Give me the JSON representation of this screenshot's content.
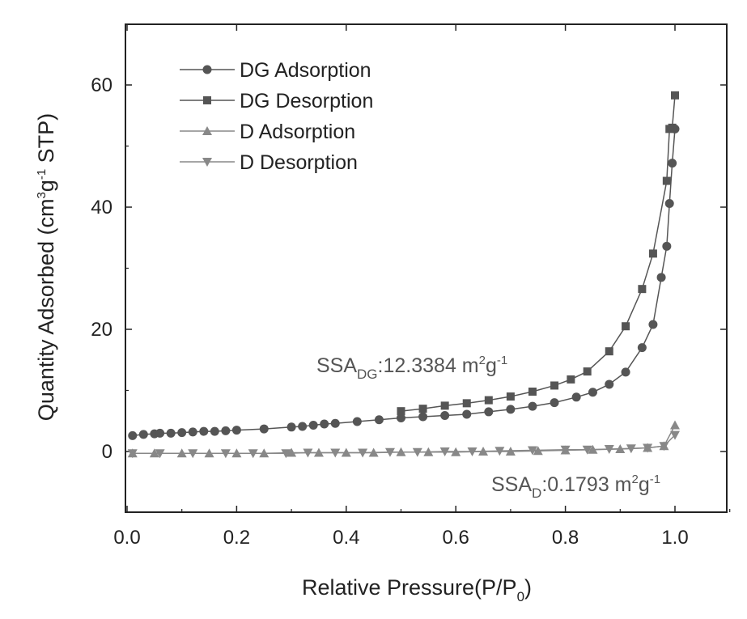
{
  "chart_data": {
    "type": "line",
    "xlabel_main": "Relative Pressure(P/P",
    "xlabel_sub": "0",
    "xlabel_end": ")",
    "ylabel_pre": "Quantity Adsorbed (cm",
    "ylabel_sup1": "3",
    "ylabel_mid": "g",
    "ylabel_sup2": "-1",
    "ylabel_end": " STP)",
    "xlim": [
      0.0,
      1.1
    ],
    "ylim": [
      -10,
      70
    ],
    "x_ticks": [
      "0.0",
      "0.2",
      "0.4",
      "0.6",
      "0.8",
      "1.0"
    ],
    "x_tick_values": [
      0.0,
      0.2,
      0.4,
      0.6,
      0.8,
      1.0
    ],
    "y_ticks": [
      "0",
      "20",
      "40",
      "60"
    ],
    "y_tick_values": [
      0,
      20,
      40,
      60
    ],
    "grid": false,
    "legend_position": "top-left",
    "series": [
      {
        "name": "DG Adsorption",
        "marker": "circle",
        "color": "#555555",
        "x": [
          0.01,
          0.03,
          0.05,
          0.06,
          0.08,
          0.1,
          0.12,
          0.14,
          0.16,
          0.18,
          0.2,
          0.25,
          0.3,
          0.32,
          0.34,
          0.36,
          0.38,
          0.42,
          0.46,
          0.5,
          0.54,
          0.58,
          0.62,
          0.66,
          0.7,
          0.74,
          0.78,
          0.82,
          0.85,
          0.88,
          0.91,
          0.94,
          0.96,
          0.975,
          0.985,
          0.99,
          0.995,
          1.0
        ],
        "y": [
          2.6,
          2.8,
          2.9,
          3.0,
          3.0,
          3.1,
          3.2,
          3.3,
          3.3,
          3.4,
          3.5,
          3.7,
          4.0,
          4.1,
          4.3,
          4.5,
          4.6,
          4.9,
          5.2,
          5.5,
          5.7,
          5.9,
          6.1,
          6.5,
          6.9,
          7.4,
          8.0,
          8.9,
          9.7,
          11.0,
          13.0,
          17.0,
          20.8,
          28.5,
          33.6,
          40.6,
          47.2,
          52.8
        ]
      },
      {
        "name": "DG Desorption",
        "marker": "square",
        "color": "#555555",
        "x": [
          1.0,
          0.995,
          0.99,
          0.985,
          0.96,
          0.94,
          0.91,
          0.88,
          0.84,
          0.81,
          0.78,
          0.74,
          0.7,
          0.66,
          0.62,
          0.58,
          0.54,
          0.5
        ],
        "y": [
          58.3,
          53.0,
          52.8,
          44.3,
          32.4,
          26.6,
          20.5,
          16.4,
          13.1,
          11.8,
          10.8,
          9.8,
          9.0,
          8.4,
          7.9,
          7.5,
          7.0,
          6.6
        ]
      },
      {
        "name": "D Adsorption",
        "marker": "triangle-up",
        "color": "#888888",
        "x": [
          0.01,
          0.05,
          0.1,
          0.15,
          0.2,
          0.25,
          0.3,
          0.35,
          0.4,
          0.45,
          0.5,
          0.55,
          0.6,
          0.65,
          0.7,
          0.75,
          0.8,
          0.85,
          0.9,
          0.95,
          0.98,
          1.0
        ],
        "y": [
          -0.3,
          -0.3,
          -0.3,
          -0.3,
          -0.3,
          -0.3,
          -0.2,
          -0.2,
          -0.2,
          -0.2,
          -0.1,
          -0.1,
          -0.1,
          0.0,
          0.0,
          0.1,
          0.2,
          0.3,
          0.4,
          0.6,
          0.9,
          4.3
        ]
      },
      {
        "name": "D Desorption",
        "marker": "triangle-down",
        "color": "#888888",
        "x": [
          1.0,
          0.98,
          0.95,
          0.92,
          0.88,
          0.84,
          0.8,
          0.74,
          0.68,
          0.63,
          0.58,
          0.53,
          0.48,
          0.43,
          0.38,
          0.33,
          0.29,
          0.23,
          0.18,
          0.12,
          0.06,
          0.01
        ],
        "y": [
          2.7,
          0.9,
          0.6,
          0.5,
          0.4,
          0.3,
          0.3,
          0.2,
          0.1,
          0.0,
          0.0,
          -0.1,
          -0.1,
          -0.2,
          -0.2,
          -0.2,
          -0.3,
          -0.3,
          -0.3,
          -0.3,
          -0.3,
          -0.3
        ]
      }
    ],
    "annotations": [
      {
        "name": "ssa-dg",
        "base": "SSA",
        "sub": "DG",
        "rest": ":12.3384 m",
        "sup": "2",
        "g": "g",
        "sup2": "-1",
        "at_x": 0.345,
        "at_y": 13.2
      },
      {
        "name": "ssa-d",
        "base": "SSA",
        "sub": "D",
        "rest": ":0.1793 m",
        "sup": "2",
        "g": "g",
        "sup2": "-1",
        "at_x": 0.665,
        "at_y": -6.5
      }
    ]
  }
}
